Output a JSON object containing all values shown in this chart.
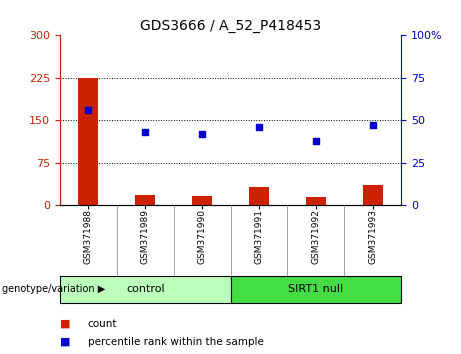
{
  "title": "GDS3666 / A_52_P418453",
  "samples": [
    "GSM371988",
    "GSM371989",
    "GSM371990",
    "GSM371991",
    "GSM371992",
    "GSM371993"
  ],
  "count_values": [
    225,
    18,
    17,
    33,
    15,
    35
  ],
  "percentile_values": [
    56,
    43,
    42,
    46,
    38,
    47
  ],
  "left_ylim": [
    0,
    300
  ],
  "right_ylim": [
    0,
    100
  ],
  "left_yticks": [
    0,
    75,
    150,
    225,
    300
  ],
  "right_yticks": [
    0,
    25,
    50,
    75,
    100
  ],
  "left_ytick_labels": [
    "0",
    "75",
    "150",
    "225",
    "300"
  ],
  "right_ytick_labels": [
    "0",
    "25",
    "50",
    "75",
    "100%"
  ],
  "bar_color": "#cc2200",
  "dot_color": "#0000cc",
  "n_control": 3,
  "n_sirt1": 3,
  "control_label": "control",
  "sirt1_label": "SIRT1 null",
  "genotype_label": "genotype/variation",
  "legend_count": "count",
  "legend_percentile": "percentile rank within the sample",
  "control_color": "#bbffbb",
  "sirt1_color": "#44dd44",
  "bar_width": 0.35,
  "dot_size": 22,
  "grid_color": "black",
  "xtick_bg_color": "#cccccc"
}
